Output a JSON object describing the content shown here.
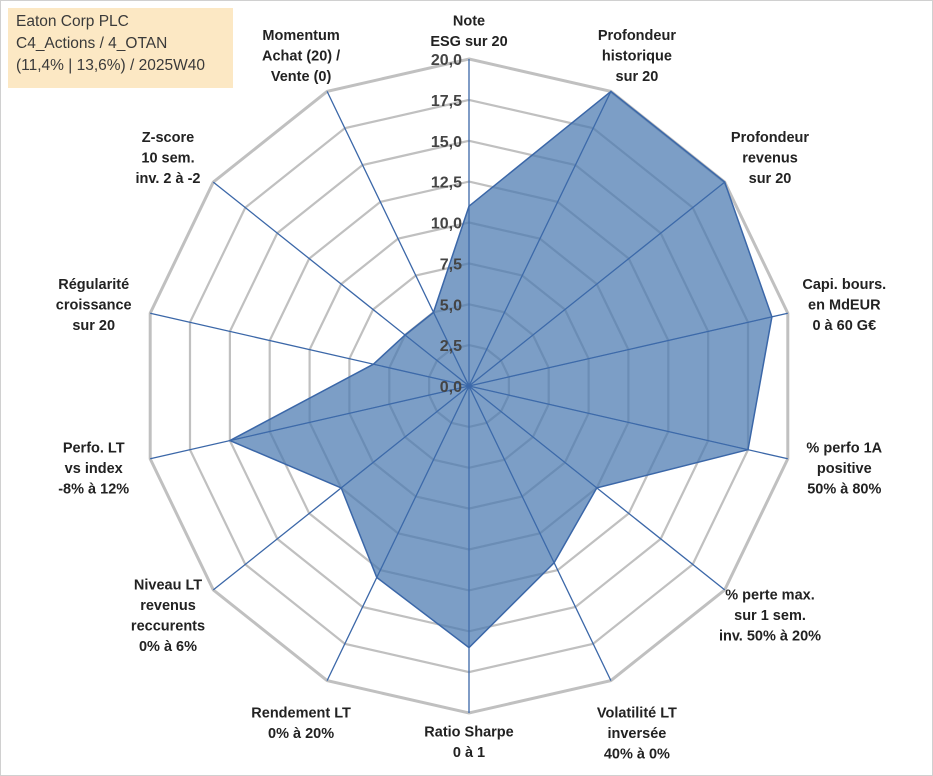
{
  "info": {
    "line1": "Eaton Corp PLC",
    "line2": "C4_Actions / 4_OTAN",
    "line3": "(11,4% | 13,6%) / 2025W40"
  },
  "colors": {
    "fill": "#4a78b0",
    "stroke": "#3b67a8",
    "grid": "#c0c0c0",
    "spoke": "#3b67a8",
    "info_bg": "#fce8c4"
  },
  "chart_data": {
    "type": "radar",
    "title": "",
    "range": [
      0,
      20
    ],
    "ticks": [
      "0,0",
      "2,5",
      "5,0",
      "7,5",
      "10,0",
      "12,5",
      "15,0",
      "17,5",
      "20,0"
    ],
    "axes": [
      {
        "label": [
          "Note",
          "ESG sur 20"
        ],
        "value": 11.0
      },
      {
        "label": [
          "Profondeur",
          "historique",
          "sur 20"
        ],
        "value": 20.0
      },
      {
        "label": [
          "Profondeur",
          "revenus",
          "sur 20"
        ],
        "value": 20.0
      },
      {
        "label": [
          "Capi. bours.",
          "en MdEUR",
          "0 à 60 G€"
        ],
        "value": 19.0
      },
      {
        "label": [
          "% perfo 1A",
          "positive",
          "50% à 80%"
        ],
        "value": 17.5
      },
      {
        "label": [
          "% perte max.",
          "sur 1 sem.",
          "inv. 50% à 20%"
        ],
        "value": 10.0
      },
      {
        "label": [
          "Volatilité LT",
          "inversée",
          "40% à 0%"
        ],
        "value": 12.0
      },
      {
        "label": [
          "Ratio Sharpe",
          "0 à 1"
        ],
        "value": 16.0
      },
      {
        "label": [
          "Rendement LT",
          "0% à 20%"
        ],
        "value": 13.0
      },
      {
        "label": [
          "Niveau LT",
          "revenus",
          "reccurents",
          "0% à 6%"
        ],
        "value": 10.0
      },
      {
        "label": [
          "Perfo. LT",
          "vs index",
          "-8% à 12%"
        ],
        "value": 15.0
      },
      {
        "label": [
          "Régularité",
          "croissance",
          "sur 20"
        ],
        "value": 6.0
      },
      {
        "label": [
          "Z-score",
          "10 sem.",
          "inv. 2 à -2"
        ],
        "value": 5.0
      },
      {
        "label": [
          "Momentum",
          "Achat (20) /",
          "Vente (0)"
        ],
        "value": 5.0
      }
    ]
  }
}
